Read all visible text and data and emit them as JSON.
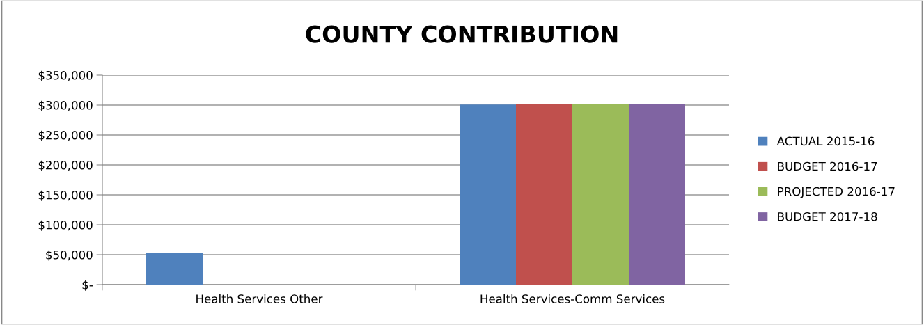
{
  "chart_data": {
    "type": "bar",
    "title": "COUNTY CONTRIBUTION",
    "categories": [
      "Health Services Other",
      "Health Services-Comm Services"
    ],
    "series": [
      {
        "name": "ACTUAL 2015-16",
        "color": "#4f81bd",
        "values": [
          53000,
          301000
        ]
      },
      {
        "name": "BUDGET 2016-17",
        "color": "#c0504d",
        "values": [
          0,
          302000
        ]
      },
      {
        "name": "PROJECTED 2016-17",
        "color": "#9bbb59",
        "values": [
          0,
          302000
        ]
      },
      {
        "name": "BUDGET 2017-18",
        "color": "#8064a2",
        "values": [
          0,
          302000
        ]
      }
    ],
    "ylim": [
      0,
      350000
    ],
    "yticks": [
      {
        "value": 0,
        "label": "$-"
      },
      {
        "value": 50000,
        "label": "$50,000"
      },
      {
        "value": 100000,
        "label": "$100,000"
      },
      {
        "value": 150000,
        "label": "$150,000"
      },
      {
        "value": 200000,
        "label": "$200,000"
      },
      {
        "value": 250000,
        "label": "$250,000"
      },
      {
        "value": 300000,
        "label": "$300,000"
      },
      {
        "value": 350000,
        "label": "$350,000"
      }
    ],
    "grid": "y",
    "legend": "right"
  }
}
